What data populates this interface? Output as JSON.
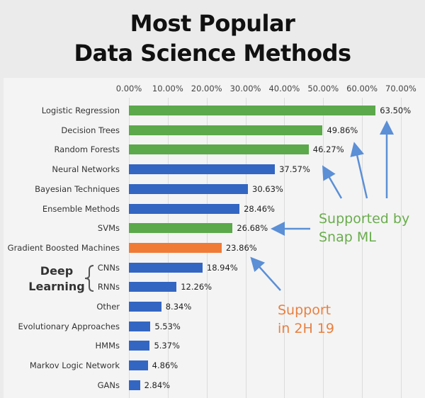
{
  "title_line1": "Most Popular",
  "title_line2": "Data Science Methods",
  "colors": {
    "green": "#5ba94a",
    "blue": "#3366c2",
    "orange": "#f07b35",
    "arrow": "#5b8fd6"
  },
  "annotations": {
    "deep_learning_line1": "Deep",
    "deep_learning_line2": "Learning",
    "snapml_line1": "Supported by",
    "snapml_line2": "Snap ML",
    "support_line1": "Support",
    "support_line2": "in 2H 19"
  },
  "chart_data": {
    "type": "bar",
    "orientation": "horizontal",
    "title": "Most Popular Data Science Methods",
    "xlabel": "",
    "ylabel": "",
    "xlim": [
      0,
      70
    ],
    "xticks": [
      "0.00%",
      "10.00%",
      "20.00%",
      "30.00%",
      "40.00%",
      "50.00%",
      "60.00%",
      "70.00%"
    ],
    "grid": true,
    "categories": [
      "Logistic Regression",
      "Decision Trees",
      "Random Forests",
      "Neural Networks",
      "Bayesian Techniques",
      "Ensemble Methods",
      "SVMs",
      "Gradient Boosted Machines",
      "CNNs",
      "RNNs",
      "Other",
      "Evolutionary Approaches",
      "HMMs",
      "Markov Logic Network",
      "GANs"
    ],
    "values": [
      63.5,
      49.86,
      46.27,
      37.57,
      30.63,
      28.46,
      26.68,
      23.86,
      18.94,
      12.26,
      8.34,
      5.53,
      5.37,
      4.86,
      2.84
    ],
    "labels": [
      "63.50%",
      "49.86%",
      "46.27%",
      "37.57%",
      "30.63%",
      "28.46%",
      "26.68%",
      "23.86%",
      "18.94%",
      "12.26%",
      "8.34%",
      "5.53%",
      "5.37%",
      "4.86%",
      "2.84%"
    ],
    "bar_colors": [
      "green",
      "green",
      "green",
      "blue",
      "blue",
      "blue",
      "green",
      "orange",
      "blue",
      "blue",
      "blue",
      "blue",
      "blue",
      "blue",
      "blue"
    ],
    "annotations": [
      "Supported by Snap ML (green bars)",
      "Support in 2H 19 (orange bar)",
      "Deep Learning: CNNs, RNNs"
    ]
  }
}
